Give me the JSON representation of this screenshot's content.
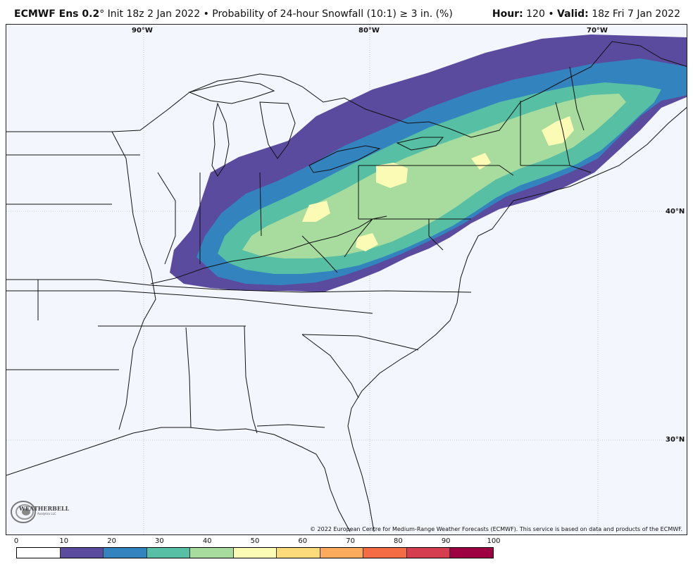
{
  "header": {
    "model": "ECMWF Ens 0.2",
    "degree": "°",
    "init": "Init 18z 2 Jan 2022",
    "bullet": "•",
    "product": "Probability of 24-hour Snowfall (10:1) ≥ 3 in. (%)",
    "hour_label": "Hour:",
    "hour_value": "120",
    "valid_label": "Valid:",
    "valid_value": "18z Fri 7 Jan 2022"
  },
  "map": {
    "lon_labels": [
      "90°W",
      "80°W",
      "70°W"
    ],
    "lat_labels": [
      "40°N",
      "30°N"
    ],
    "copyright": "© 2022 European Centre for Medium-Range Weather Forecasts (ECMWF). This service is based on data and products of the ECMWF.",
    "logo_text": "WEATHERBELL",
    "logo_sub": "Analytics LLC",
    "background_color": "#f3f6fd",
    "contour_colors": [
      "#5b4b9f",
      "#3383be",
      "#56bfa4",
      "#a8dc9f",
      "#fbfbb5"
    ]
  },
  "legend": {
    "ticks": [
      "0",
      "10",
      "20",
      "30",
      "40",
      "50",
      "60",
      "70",
      "80",
      "90",
      "100"
    ],
    "colors": [
      "#ffffff",
      "#5b4b9f",
      "#3383be",
      "#56bfa4",
      "#a8dc9f",
      "#fbfbb5",
      "#fddb7a",
      "#fcaa5c",
      "#f46c43",
      "#d53e4f",
      "#9e0142"
    ]
  }
}
